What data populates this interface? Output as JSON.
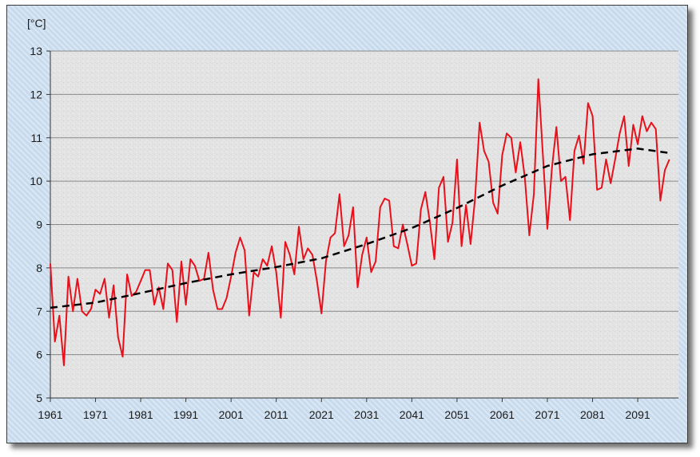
{
  "chart_data": {
    "type": "line",
    "unit_label": "[°C]",
    "xlim": [
      1961,
      2100
    ],
    "ylim": [
      5,
      13
    ],
    "y_ticks": [
      5,
      6,
      7,
      8,
      9,
      10,
      11,
      12,
      13
    ],
    "x_tick_labels": [
      "1961",
      "1971",
      "1981",
      "1991",
      "2001",
      "2011",
      "2021",
      "2031",
      "2041",
      "2051",
      "2061",
      "2071",
      "2081",
      "2091"
    ],
    "grid": true,
    "series": [
      {
        "style": "solid",
        "color": "#e8101a",
        "points": [
          [
            1961,
            8.1
          ],
          [
            1962,
            6.3
          ],
          [
            1963,
            6.9
          ],
          [
            1964,
            5.75
          ],
          [
            1965,
            7.8
          ],
          [
            1966,
            7.0
          ],
          [
            1967,
            7.75
          ],
          [
            1968,
            7.0
          ],
          [
            1969,
            6.9
          ],
          [
            1970,
            7.05
          ],
          [
            1971,
            7.5
          ],
          [
            1972,
            7.4
          ],
          [
            1973,
            7.75
          ],
          [
            1974,
            6.85
          ],
          [
            1975,
            7.6
          ],
          [
            1976,
            6.4
          ],
          [
            1977,
            5.95
          ],
          [
            1978,
            7.85
          ],
          [
            1979,
            7.35
          ],
          [
            1980,
            7.45
          ],
          [
            1981,
            7.7
          ],
          [
            1982,
            7.95
          ],
          [
            1983,
            7.95
          ],
          [
            1984,
            7.15
          ],
          [
            1985,
            7.55
          ],
          [
            1986,
            7.05
          ],
          [
            1987,
            8.1
          ],
          [
            1988,
            7.95
          ],
          [
            1989,
            6.75
          ],
          [
            1990,
            8.15
          ],
          [
            1991,
            7.15
          ],
          [
            1992,
            8.2
          ],
          [
            1993,
            8.05
          ],
          [
            1994,
            7.7
          ],
          [
            1995,
            7.75
          ],
          [
            1996,
            8.35
          ],
          [
            1997,
            7.5
          ],
          [
            1998,
            7.05
          ],
          [
            1999,
            7.05
          ],
          [
            2000,
            7.3
          ],
          [
            2001,
            7.8
          ],
          [
            2002,
            8.35
          ],
          [
            2003,
            8.7
          ],
          [
            2004,
            8.4
          ],
          [
            2005,
            6.9
          ],
          [
            2006,
            7.9
          ],
          [
            2007,
            7.8
          ],
          [
            2008,
            8.2
          ],
          [
            2009,
            8.05
          ],
          [
            2010,
            8.5
          ],
          [
            2011,
            7.9
          ],
          [
            2012,
            6.85
          ],
          [
            2013,
            8.6
          ],
          [
            2014,
            8.3
          ],
          [
            2015,
            7.85
          ],
          [
            2016,
            8.95
          ],
          [
            2017,
            8.2
          ],
          [
            2018,
            8.45
          ],
          [
            2019,
            8.3
          ],
          [
            2020,
            7.7
          ],
          [
            2021,
            6.95
          ],
          [
            2022,
            8.15
          ],
          [
            2023,
            8.7
          ],
          [
            2024,
            8.8
          ],
          [
            2025,
            9.7
          ],
          [
            2026,
            8.5
          ],
          [
            2027,
            8.75
          ],
          [
            2028,
            9.4
          ],
          [
            2029,
            7.55
          ],
          [
            2030,
            8.3
          ],
          [
            2031,
            8.7
          ],
          [
            2032,
            7.9
          ],
          [
            2033,
            8.15
          ],
          [
            2034,
            9.4
          ],
          [
            2035,
            9.6
          ],
          [
            2036,
            9.55
          ],
          [
            2037,
            8.5
          ],
          [
            2038,
            8.45
          ],
          [
            2039,
            9.0
          ],
          [
            2040,
            8.55
          ],
          [
            2041,
            8.05
          ],
          [
            2042,
            8.1
          ],
          [
            2043,
            9.35
          ],
          [
            2044,
            9.75
          ],
          [
            2045,
            9.05
          ],
          [
            2046,
            8.2
          ],
          [
            2047,
            9.85
          ],
          [
            2048,
            10.1
          ],
          [
            2049,
            8.6
          ],
          [
            2050,
            9.05
          ],
          [
            2051,
            10.5
          ],
          [
            2052,
            8.5
          ],
          [
            2053,
            9.45
          ],
          [
            2054,
            8.55
          ],
          [
            2055,
            9.6
          ],
          [
            2056,
            11.35
          ],
          [
            2057,
            10.7
          ],
          [
            2058,
            10.45
          ],
          [
            2059,
            9.5
          ],
          [
            2060,
            9.25
          ],
          [
            2061,
            10.6
          ],
          [
            2062,
            11.1
          ],
          [
            2063,
            11.0
          ],
          [
            2064,
            10.2
          ],
          [
            2065,
            10.9
          ],
          [
            2066,
            10.1
          ],
          [
            2067,
            8.75
          ],
          [
            2068,
            9.7
          ],
          [
            2069,
            12.35
          ],
          [
            2070,
            10.6
          ],
          [
            2071,
            8.9
          ],
          [
            2072,
            10.3
          ],
          [
            2073,
            11.25
          ],
          [
            2074,
            10.0
          ],
          [
            2075,
            10.1
          ],
          [
            2076,
            9.1
          ],
          [
            2077,
            10.7
          ],
          [
            2078,
            11.05
          ],
          [
            2079,
            10.4
          ],
          [
            2080,
            11.8
          ],
          [
            2081,
            11.5
          ],
          [
            2082,
            9.8
          ],
          [
            2083,
            9.85
          ],
          [
            2084,
            10.5
          ],
          [
            2085,
            9.95
          ],
          [
            2086,
            10.5
          ],
          [
            2087,
            11.1
          ],
          [
            2088,
            11.5
          ],
          [
            2089,
            10.35
          ],
          [
            2090,
            11.3
          ],
          [
            2091,
            10.85
          ],
          [
            2092,
            11.5
          ],
          [
            2093,
            11.15
          ],
          [
            2094,
            11.35
          ],
          [
            2095,
            11.2
          ],
          [
            2096,
            9.55
          ],
          [
            2097,
            10.25
          ],
          [
            2098,
            10.5
          ]
        ]
      },
      {
        "style": "dashed",
        "color": "#000000",
        "points": [
          [
            1961,
            7.08
          ],
          [
            1971,
            7.2
          ],
          [
            1981,
            7.42
          ],
          [
            1991,
            7.65
          ],
          [
            2001,
            7.85
          ],
          [
            2011,
            8.02
          ],
          [
            2021,
            8.22
          ],
          [
            2031,
            8.55
          ],
          [
            2041,
            8.92
          ],
          [
            2051,
            9.38
          ],
          [
            2061,
            9.9
          ],
          [
            2071,
            10.35
          ],
          [
            2081,
            10.62
          ],
          [
            2091,
            10.75
          ],
          [
            2098,
            10.65
          ]
        ]
      }
    ]
  }
}
